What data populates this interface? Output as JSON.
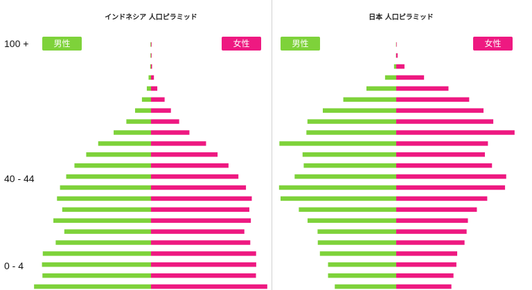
{
  "colors": {
    "male": "#7ED23A",
    "female": "#EE1981",
    "divider": "#d0d0d0"
  },
  "chart_data": [
    {
      "type": "bar",
      "orientation": "horizontal-population-pyramid",
      "title": "インドネシア 人口ピラミッド",
      "y_tick_labels": [
        "100 +",
        "40 - 44",
        "0 - 4"
      ],
      "series": [
        {
          "name": "男性",
          "values": [
            0.05,
            0.05,
            0.07,
            0.21,
            0.36,
            0.78,
            1.37,
            2.12,
            3.21,
            4.54,
            5.57,
            6.58,
            7.29,
            7.82,
            8.08,
            7.63,
            8.39,
            7.45,
            8.19,
            9.3,
            9.37,
            9.33,
            10.05
          ]
        },
        {
          "name": "女性",
          "values": [
            0.05,
            0.05,
            0.09,
            0.25,
            0.54,
            1.17,
            1.71,
            2.42,
            3.3,
            4.73,
            5.72,
            6.66,
            7.51,
            8.16,
            8.66,
            8.45,
            8.58,
            8.02,
            8.53,
            9.03,
            9.04,
            9.02,
            9.99
          ]
        }
      ]
    },
    {
      "type": "bar",
      "orientation": "horizontal-population-pyramid",
      "title": "日本 人口ピラミッド",
      "series": [
        {
          "name": "男性",
          "values": [
            0.02,
            0.02,
            0.19,
            0.96,
            2.56,
            4.55,
            6.31,
            7.63,
            7.72,
            10.04,
            8.05,
            7.95,
            8.73,
            10.07,
            9.94,
            8.37,
            7.62,
            6.76,
            6.74,
            6.56,
            5.86,
            5.86,
            5.28
          ]
        },
        {
          "name": "女性",
          "values": [
            0.04,
            0.12,
            0.71,
            2.39,
            4.49,
            6.27,
            7.5,
            8.34,
            10.17,
            7.88,
            7.62,
            8.23,
            9.45,
            9.35,
            7.82,
            6.93,
            6.16,
            6.05,
            5.87,
            5.24,
            5.17,
            4.92,
            4.74
          ]
        }
      ]
    }
  ]
}
